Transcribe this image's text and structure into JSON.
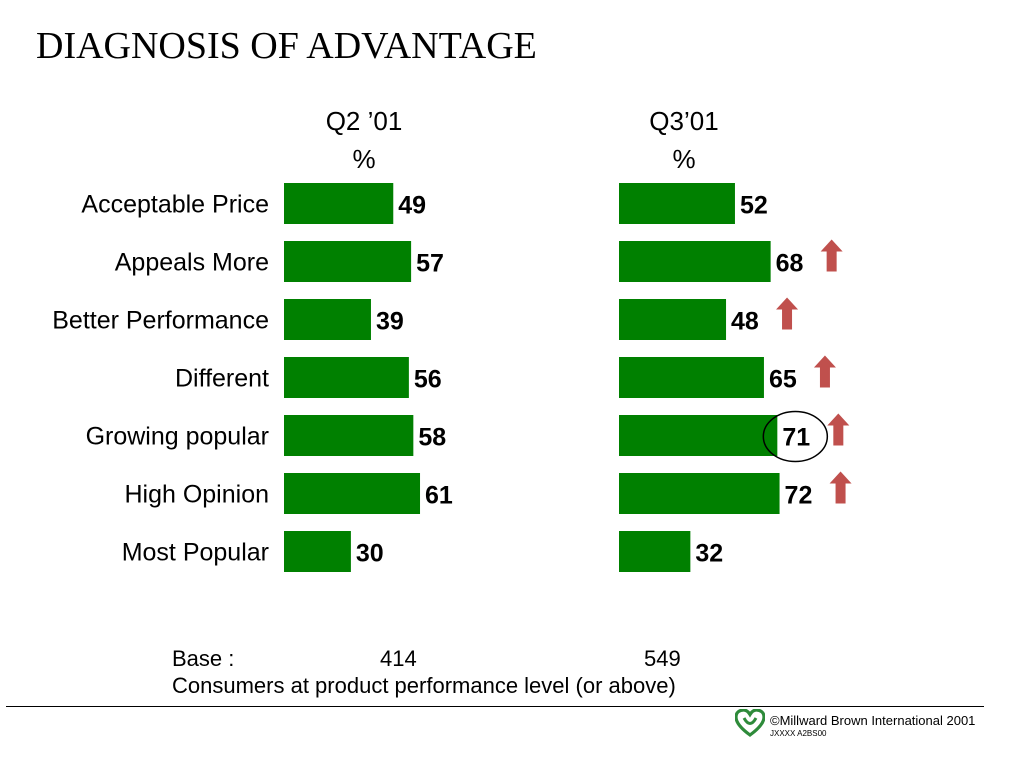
{
  "title": "DIAGNOSIS OF ADVANTAGE",
  "columns": [
    {
      "period": "Q2 ’01",
      "unit": "%",
      "base": "414"
    },
    {
      "period": "Q3’01",
      "unit": "%",
      "base": "549"
    }
  ],
  "base_label": "Base :",
  "base_note": "Consumers at product performance level (or above)",
  "footer": {
    "copyright": "©Millward Brown International 2001",
    "code": "JXXXX  A2BS00",
    "logo_icon": "heart-leaf-logo-icon",
    "logo_color": "#2e8b3a"
  },
  "chart_data": {
    "type": "bar",
    "orientation": "horizontal",
    "categories": [
      "Acceptable Price",
      "Appeals More",
      "Better Performance",
      "Different",
      "Growing  popular",
      "High Opinion",
      "Most Popular"
    ],
    "series": [
      {
        "name": "Q2 ’01",
        "values": [
          49,
          57,
          39,
          56,
          58,
          61,
          30
        ]
      },
      {
        "name": "Q3’01",
        "values": [
          52,
          68,
          48,
          65,
          71,
          72,
          32
        ]
      }
    ],
    "increase_arrows_q3": [
      false,
      true,
      true,
      true,
      true,
      true,
      false
    ],
    "circled_q3": [
      false,
      false,
      false,
      false,
      true,
      false,
      false
    ],
    "bar_color": "#008000",
    "arrow_color": "#c0504d",
    "data_labels": true,
    "grid": false,
    "legend": "none"
  }
}
